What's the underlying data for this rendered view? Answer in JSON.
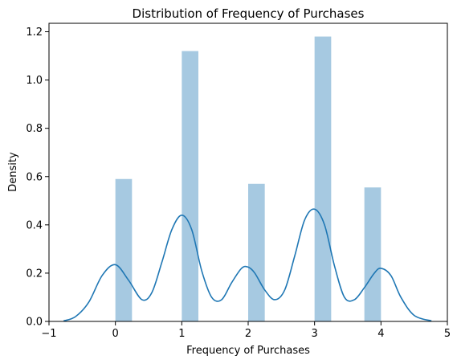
{
  "chart_data": {
    "type": "bar",
    "title": "Distribution of Frequency of Purchases",
    "xlabel": "Frequency of Purchases",
    "ylabel": "Density",
    "xlim": [
      -1.0,
      5.0
    ],
    "ylim": [
      0.0,
      1.235
    ],
    "xticks": [
      -1,
      0,
      1,
      2,
      3,
      4,
      5
    ],
    "yticks": [
      0.0,
      0.2,
      0.4,
      0.6,
      0.8,
      1.0,
      1.2
    ],
    "grid": false,
    "legend": false,
    "bar_color": "#a6c9e1",
    "line_color": "#1f77b4",
    "histogram": {
      "bin_width": 0.25,
      "bins": [
        {
          "x_start": 0.0,
          "x_end": 0.25,
          "density": 0.59
        },
        {
          "x_start": 1.0,
          "x_end": 1.25,
          "density": 1.12
        },
        {
          "x_start": 2.0,
          "x_end": 2.25,
          "density": 0.57
        },
        {
          "x_start": 3.0,
          "x_end": 3.25,
          "density": 1.18
        },
        {
          "x_start": 3.75,
          "x_end": 4.0,
          "density": 0.555
        }
      ]
    },
    "kde": {
      "x": [
        -0.78,
        -0.6,
        -0.4,
        -0.2,
        0.0,
        0.2,
        0.4,
        0.55,
        0.7,
        0.85,
        1.0,
        1.15,
        1.3,
        1.45,
        1.6,
        1.75,
        1.9,
        2.0,
        2.1,
        2.25,
        2.4,
        2.55,
        2.7,
        2.85,
        3.0,
        3.15,
        3.3,
        3.45,
        3.6,
        3.75,
        3.9,
        4.0,
        4.15,
        4.3,
        4.5,
        4.76
      ],
      "y": [
        0.002,
        0.02,
        0.08,
        0.19,
        0.235,
        0.17,
        0.09,
        0.12,
        0.245,
        0.38,
        0.44,
        0.38,
        0.21,
        0.1,
        0.09,
        0.16,
        0.22,
        0.225,
        0.2,
        0.13,
        0.09,
        0.13,
        0.27,
        0.42,
        0.465,
        0.4,
        0.23,
        0.1,
        0.09,
        0.14,
        0.2,
        0.22,
        0.19,
        0.1,
        0.025,
        0.002
      ]
    }
  }
}
